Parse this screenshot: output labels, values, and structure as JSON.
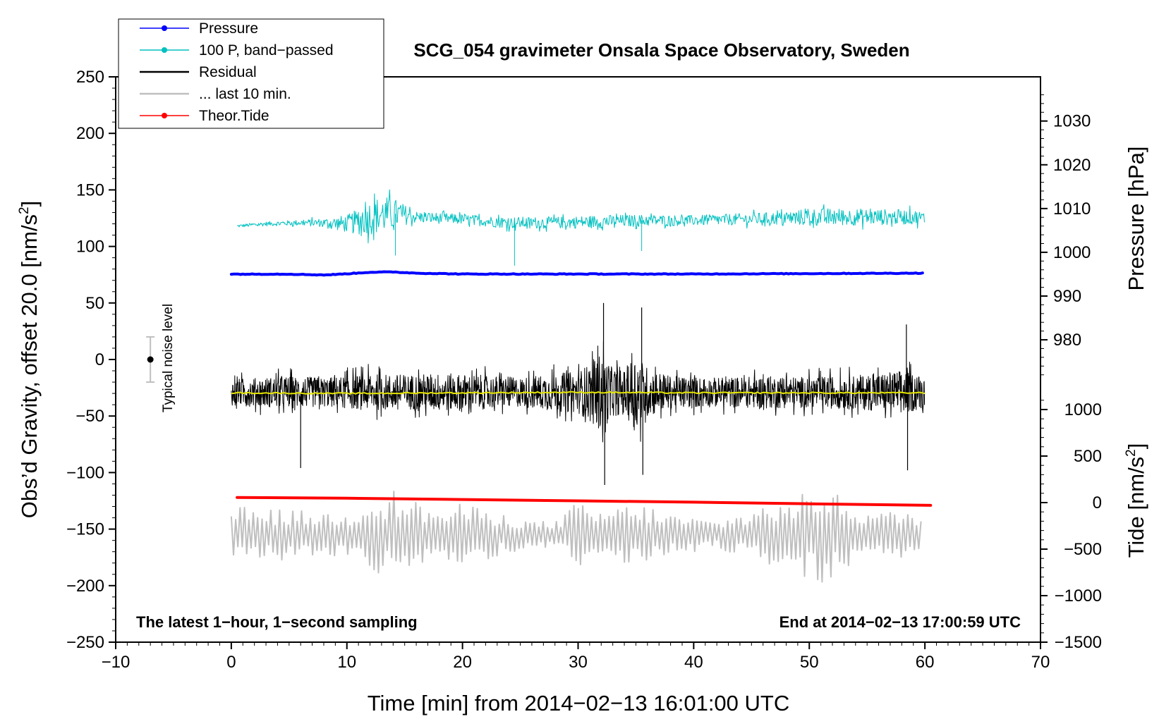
{
  "chart_data": {
    "type": "line",
    "title": "SCG_054 gravimeter Onsala Space Observatory, Sweden",
    "xlabel": "Time [min] from 2014−02−13 16:01:00 UTC",
    "ylabel_left": "Obs’d Gravity, offset 20.0 [nm/s",
    "ylabel_left_sup": "2",
    "ylabel_left_close": "]",
    "ylabel_right_pressure": "Pressure [hPa]",
    "ylabel_right_tide": "Tide [nm/s",
    "ylabel_right_tide_sup": "2",
    "ylabel_right_tide_close": "]",
    "xlim": [
      -10,
      70
    ],
    "ylim_left": [
      -250,
      250
    ],
    "x_ticks": [
      "−10",
      "0",
      "10",
      "20",
      "30",
      "40",
      "50",
      "60",
      "70"
    ],
    "x_tick_values": [
      -10,
      0,
      10,
      20,
      30,
      40,
      50,
      60,
      70
    ],
    "y_ticks_left": [
      "250",
      "200",
      "150",
      "100",
      "50",
      "0",
      "−50",
      "−100",
      "−150",
      "−200",
      "−250"
    ],
    "y_tick_values_left": [
      250,
      200,
      150,
      100,
      50,
      0,
      -50,
      -100,
      -150,
      -200,
      -250
    ],
    "pressure_ticks": [
      "1030",
      "1020",
      "1010",
      "1000",
      "990",
      "980"
    ],
    "pressure_tick_values": [
      1030,
      1020,
      1010,
      1000,
      990,
      980
    ],
    "pressure_axis_map": {
      "hPa_at_left_0": 975.5,
      "left_units_per_hPa": 3.87
    },
    "tide_ticks": [
      "1000",
      "500",
      "0",
      "−500",
      "−1000",
      "−1500"
    ],
    "tide_tick_values": [
      1000,
      500,
      0,
      -500,
      -1000,
      -1500
    ],
    "tide_axis_map": {
      "tide_at_left_min": -1500,
      "left_units_per_nms2": 0.0823
    },
    "legend": [
      {
        "label": "Pressure",
        "color": "#0000ff",
        "marker": true
      },
      {
        "label": "100 P, band−passed",
        "color": "#00c0c0",
        "marker": true
      },
      {
        "label": "Residual",
        "color": "#000000",
        "marker": false
      },
      {
        "label": "... last 10 min.",
        "color": "#bfbfbf",
        "marker": false
      },
      {
        "label": "Theor.Tide",
        "color": "#ff0000",
        "marker": true
      }
    ],
    "note_left": "The latest 1−hour, 1−second sampling",
    "note_right": "End at 2014−02−13 17:00:59 UTC",
    "noise_label": "Typical noise level",
    "noise_bar": {
      "x": -7,
      "center": 0,
      "half_range": 20
    },
    "series": [
      {
        "name": "Pressure",
        "color": "#0000ff",
        "width": 4,
        "x": [
          0,
          5,
          8,
          9,
          11,
          12,
          14,
          16,
          20,
          30,
          40,
          50,
          55,
          60
        ],
        "y": [
          75.5,
          75.5,
          74.8,
          75.2,
          76.5,
          77.2,
          77.4,
          76.4,
          75.6,
          75.6,
          75.6,
          76.0,
          76.2,
          76.4
        ]
      },
      {
        "name": "100 P, band−passed",
        "color": "#00c0c0",
        "width": 1,
        "x_start": 0.5,
        "x_end": 60,
        "envelope": {
          "x": [
            0.5,
            3,
            6,
            8,
            10,
            11,
            12,
            13,
            14,
            15,
            16,
            20,
            24,
            28,
            32,
            36,
            40,
            44,
            48,
            50,
            52,
            56,
            59,
            60
          ],
          "base": [
            118,
            120,
            121,
            121,
            120,
            122,
            126,
            128,
            129,
            128,
            126,
            124,
            121,
            121,
            122,
            123,
            123,
            124,
            125,
            126,
            126,
            126,
            126,
            125
          ],
          "amp": [
            2,
            3,
            4,
            6,
            12,
            18,
            24,
            26,
            22,
            14,
            8,
            7,
            8,
            8,
            9,
            8,
            7,
            8,
            9,
            12,
            12,
            11,
            10,
            9
          ]
        },
        "spikes": [
          {
            "x": 14.2,
            "y": 92
          },
          {
            "x": 24.5,
            "y": 83
          },
          {
            "x": 35.5,
            "y": 96
          }
        ]
      },
      {
        "name": "Residual",
        "color": "#000000",
        "width": 1,
        "x_start": 0,
        "x_end": 60,
        "center": -29,
        "envelope": {
          "x": [
            0,
            5,
            8,
            10,
            12,
            15,
            18,
            21,
            25,
            28,
            30,
            31,
            32,
            33,
            34,
            35,
            36,
            38,
            42,
            46,
            50,
            55,
            58,
            60
          ],
          "amp": [
            18,
            22,
            20,
            22,
            25,
            24,
            26,
            24,
            20,
            26,
            28,
            40,
            55,
            32,
            30,
            55,
            34,
            22,
            20,
            22,
            21,
            24,
            30,
            22
          ]
        },
        "spikes": [
          {
            "x": 32.2,
            "y": 50
          },
          {
            "x": 32.3,
            "y": -111
          },
          {
            "x": 35.5,
            "y": 46
          },
          {
            "x": 35.6,
            "y": -102
          },
          {
            "x": 58.4,
            "y": 31
          },
          {
            "x": 58.5,
            "y": -98
          },
          {
            "x": 6,
            "y": -96
          }
        ]
      },
      {
        "name": "Residual smoothed",
        "color": "#e6e600",
        "width": 2,
        "x": [
          0,
          10,
          20,
          30,
          40,
          50,
          60
        ],
        "y": [
          -29.5,
          -30,
          -29.5,
          -29,
          -29.5,
          -29.5,
          -29.5
        ]
      },
      {
        "name": "... last 10 min.",
        "color": "#bfbfbf",
        "width": 2,
        "x_start": 0,
        "x_end": 59.8,
        "center": -155,
        "envelope": {
          "x": [
            0,
            5,
            8,
            10,
            12,
            14,
            16,
            18,
            20,
            22,
            26,
            28,
            30,
            31,
            34,
            36,
            38,
            42,
            44,
            46,
            48,
            50,
            51,
            53,
            56,
            59.8
          ],
          "amp": [
            25,
            22,
            20,
            18,
            34,
            40,
            30,
            20,
            28,
            22,
            12,
            12,
            30,
            20,
            26,
            26,
            18,
            12,
            18,
            28,
            26,
            40,
            50,
            30,
            20,
            22
          ]
        }
      },
      {
        "name": "Theor.Tide",
        "color": "#ff0000",
        "width": 4,
        "x": [
          0.5,
          10,
          20,
          30,
          40,
          50,
          60.5
        ],
        "y": [
          -122,
          -122.7,
          -123.8,
          -125,
          -126.2,
          -127.6,
          -129
        ]
      }
    ]
  }
}
